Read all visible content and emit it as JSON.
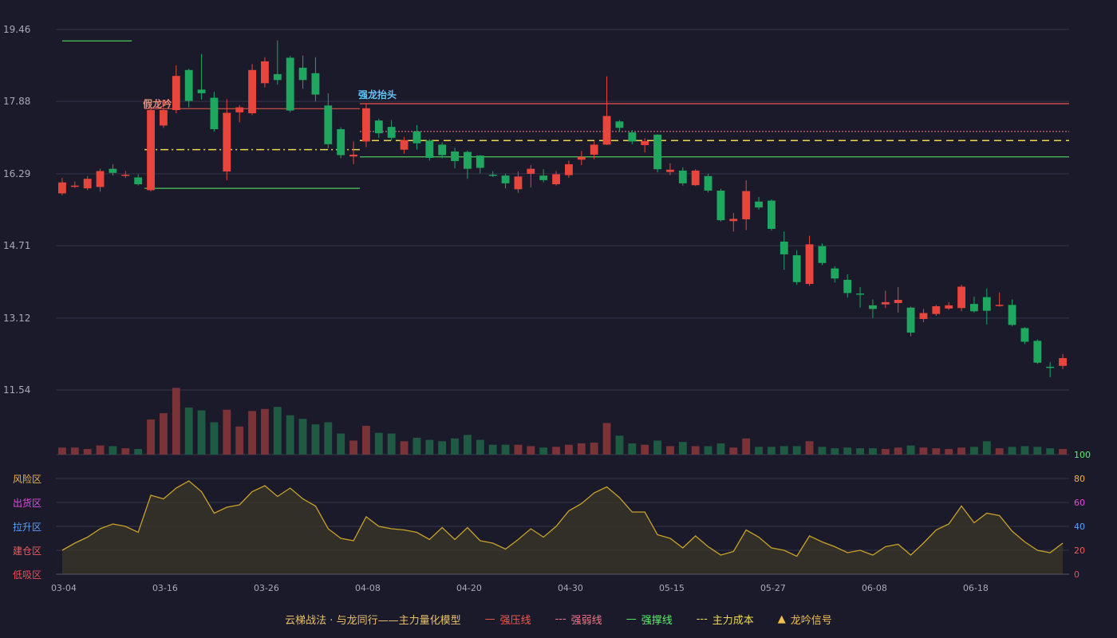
{
  "chart_data": {
    "type": "candlestick",
    "y_ticks": [
      "19.46",
      "17.88",
      "16.29",
      "14.71",
      "13.12",
      "11.54"
    ],
    "ylim": [
      11.54,
      19.46
    ],
    "x_ticks": [
      {
        "label": "03-04",
        "i": 0
      },
      {
        "label": "03-16",
        "i": 8
      },
      {
        "label": "03-26",
        "i": 16
      },
      {
        "label": "04-08",
        "i": 24
      },
      {
        "label": "04-20",
        "i": 32
      },
      {
        "label": "04-30",
        "i": 40
      },
      {
        "label": "05-15",
        "i": 48
      },
      {
        "label": "05-27",
        "i": 56
      },
      {
        "label": "06-08",
        "i": 64
      },
      {
        "label": "06-18",
        "i": 72
      }
    ],
    "candles": [
      [
        15.86,
        16.1,
        15.82,
        16.2
      ],
      [
        16.03,
        16.03,
        15.98,
        16.12
      ],
      [
        15.97,
        16.18,
        15.93,
        16.24
      ],
      [
        16.0,
        16.35,
        15.9,
        16.4
      ],
      [
        16.4,
        16.31,
        16.25,
        16.5
      ],
      [
        16.27,
        16.27,
        16.2,
        16.35
      ],
      [
        16.21,
        16.06,
        16.03,
        16.28
      ],
      [
        15.93,
        17.69,
        15.9,
        17.71
      ],
      [
        17.35,
        17.69,
        17.3,
        17.75
      ],
      [
        17.69,
        18.44,
        17.62,
        18.67
      ],
      [
        18.57,
        17.89,
        17.75,
        18.6
      ],
      [
        18.14,
        18.06,
        17.92,
        18.92
      ],
      [
        17.96,
        17.27,
        17.22,
        18.09
      ],
      [
        16.34,
        17.63,
        16.15,
        17.93
      ],
      [
        17.64,
        17.75,
        17.42,
        17.8
      ],
      [
        17.62,
        18.57,
        17.58,
        18.7
      ],
      [
        18.28,
        18.76,
        18.19,
        18.85
      ],
      [
        18.48,
        18.35,
        18.25,
        19.22
      ],
      [
        18.84,
        17.68,
        17.64,
        18.88
      ],
      [
        18.62,
        18.35,
        18.16,
        18.89
      ],
      [
        18.5,
        18.03,
        17.88,
        18.85
      ],
      [
        17.79,
        16.94,
        16.85,
        18.06
      ],
      [
        17.27,
        16.7,
        16.63,
        17.31
      ],
      [
        16.67,
        16.71,
        16.5,
        17.0
      ],
      [
        17.0,
        17.73,
        16.88,
        17.83
      ],
      [
        17.46,
        17.18,
        17.08,
        17.5
      ],
      [
        17.32,
        17.08,
        17.02,
        17.47
      ],
      [
        16.82,
        17.03,
        16.73,
        17.1
      ],
      [
        17.22,
        16.96,
        16.82,
        17.36
      ],
      [
        17.02,
        16.64,
        16.58,
        17.05
      ],
      [
        16.93,
        16.7,
        16.63,
        16.98
      ],
      [
        16.78,
        16.57,
        16.41,
        16.86
      ],
      [
        16.77,
        16.4,
        16.18,
        16.8
      ],
      [
        16.69,
        16.42,
        16.3,
        16.7
      ],
      [
        16.27,
        16.26,
        16.22,
        16.35
      ],
      [
        16.25,
        16.08,
        15.97,
        16.29
      ],
      [
        15.95,
        16.23,
        15.87,
        16.34
      ],
      [
        16.29,
        16.4,
        15.99,
        16.48
      ],
      [
        16.25,
        16.15,
        16.1,
        16.39
      ],
      [
        16.06,
        16.28,
        16.03,
        16.35
      ],
      [
        16.26,
        16.5,
        16.2,
        16.58
      ],
      [
        16.6,
        16.66,
        16.48,
        16.79
      ],
      [
        16.71,
        16.93,
        16.61,
        17.0
      ],
      [
        16.93,
        17.56,
        16.92,
        18.43
      ],
      [
        17.44,
        17.3,
        17.22,
        17.47
      ],
      [
        17.2,
        17.0,
        16.94,
        17.25
      ],
      [
        16.92,
        17.01,
        16.76,
        17.07
      ],
      [
        17.15,
        16.39,
        16.32,
        17.16
      ],
      [
        16.33,
        16.38,
        16.26,
        16.52
      ],
      [
        16.36,
        16.08,
        16.03,
        16.43
      ],
      [
        16.04,
        16.36,
        16.02,
        16.39
      ],
      [
        16.24,
        15.92,
        15.88,
        16.29
      ],
      [
        15.92,
        15.27,
        15.24,
        15.96
      ],
      [
        15.25,
        15.3,
        15.02,
        15.43
      ],
      [
        15.29,
        15.91,
        15.05,
        16.15
      ],
      [
        15.68,
        15.55,
        15.5,
        15.78
      ],
      [
        15.7,
        15.08,
        15.04,
        15.73
      ],
      [
        14.8,
        14.52,
        14.18,
        15.02
      ],
      [
        14.5,
        13.91,
        13.85,
        14.61
      ],
      [
        13.87,
        14.74,
        13.83,
        14.93
      ],
      [
        14.7,
        14.33,
        14.28,
        14.76
      ],
      [
        14.21,
        13.99,
        13.9,
        14.26
      ],
      [
        13.96,
        13.67,
        13.57,
        14.08
      ],
      [
        13.66,
        13.64,
        13.35,
        13.8
      ],
      [
        13.4,
        13.32,
        13.12,
        13.53
      ],
      [
        13.42,
        13.47,
        13.34,
        13.72
      ],
      [
        13.45,
        13.52,
        13.24,
        13.8
      ],
      [
        13.35,
        12.8,
        12.72,
        13.37
      ],
      [
        13.1,
        13.23,
        13.03,
        13.32
      ],
      [
        13.21,
        13.38,
        13.17,
        13.41
      ],
      [
        13.33,
        13.4,
        13.3,
        13.47
      ],
      [
        13.34,
        13.81,
        13.27,
        13.85
      ],
      [
        13.43,
        13.27,
        13.24,
        13.59
      ],
      [
        13.58,
        13.28,
        12.98,
        13.77
      ],
      [
        13.39,
        13.41,
        13.37,
        13.68
      ],
      [
        13.41,
        12.97,
        12.94,
        13.53
      ],
      [
        12.9,
        12.6,
        12.55,
        12.92
      ],
      [
        12.62,
        12.14,
        12.11,
        12.65
      ],
      [
        12.05,
        12.04,
        11.82,
        12.15
      ],
      [
        12.07,
        12.24,
        12.0,
        12.33
      ]
    ],
    "volume_max": 100,
    "volume": [
      10,
      10,
      8,
      13,
      12,
      9,
      8,
      50,
      59,
      95,
      67,
      63,
      46,
      64,
      40,
      62,
      65,
      68,
      56,
      51,
      43,
      46,
      30,
      20,
      41,
      31,
      30,
      19,
      24,
      21,
      19,
      23,
      28,
      21,
      14,
      14,
      14,
      12,
      10,
      11,
      14,
      16,
      17,
      45,
      27,
      16,
      14,
      20,
      12,
      18,
      12,
      12,
      16,
      10,
      23,
      11,
      11,
      12,
      12,
      19,
      11,
      9,
      10,
      9,
      9,
      8,
      10,
      13,
      10,
      9,
      8,
      10,
      11,
      19,
      9,
      11,
      12,
      11,
      9,
      8
    ],
    "strong_pressure": 17.83,
    "strong_weak": 17.22,
    "main_cost": 17.02,
    "early_cost": 16.82,
    "strong_support_1": 19.21,
    "strong_support_2": 15.97,
    "strong_support_3": 16.66,
    "annotations": [
      {
        "text": "假龙吟",
        "i": 7,
        "price": 17.7,
        "color": "#ef8a7a"
      },
      {
        "text": "强龙抬头",
        "i": 24,
        "price": 17.9,
        "color": "#62c5f7"
      }
    ],
    "osc_values": [
      20,
      26,
      31,
      38,
      42,
      40,
      35,
      66,
      63,
      72,
      78,
      69,
      51,
      56,
      58,
      69,
      74,
      65,
      72,
      63,
      57,
      38,
      30,
      28,
      48,
      40,
      38,
      37,
      35,
      29,
      39,
      29,
      39,
      28,
      26,
      21,
      29,
      38,
      31,
      40,
      53,
      59,
      68,
      73,
      64,
      52,
      52,
      33,
      30,
      22,
      32,
      23,
      16,
      19,
      37,
      31,
      22,
      20,
      15,
      32,
      27,
      23,
      18,
      20,
      16,
      23,
      25,
      16,
      26,
      37,
      42,
      57,
      43,
      51,
      49,
      36,
      27,
      20,
      18,
      26
    ],
    "osc_ticks_right": [
      "100",
      "80",
      "60",
      "40",
      "20",
      "0"
    ],
    "zones": [
      {
        "label": "风险区",
        "color": "#f0b34a"
      },
      {
        "label": "出货区",
        "color": "#e34adf"
      },
      {
        "label": "拉升区",
        "color": "#5aa0ff"
      },
      {
        "label": "建仓区",
        "color": "#f05a5a"
      },
      {
        "label": "低吸区",
        "color": "#f04a5a"
      }
    ],
    "colors": {
      "up": "#e8453c",
      "down": "#1fa65f",
      "bg": "#1a1a2b",
      "grid": "#34354a",
      "line": "#c9a227"
    }
  },
  "legend": {
    "title": "云梯战法 · 与龙同行——主力量化模型",
    "items": [
      {
        "label": "强压线",
        "marker": "—",
        "color": "#f05a4a"
      },
      {
        "label": "强弱线",
        "marker": "---",
        "color": "#f0788a"
      },
      {
        "label": "强撑线",
        "marker": "—",
        "color": "#5bf06a"
      },
      {
        "label": "主力成本",
        "marker": "---",
        "color": "#f0d84a"
      },
      {
        "label": "龙吟信号",
        "marker": "▲",
        "color": "#f0c04a"
      }
    ]
  }
}
